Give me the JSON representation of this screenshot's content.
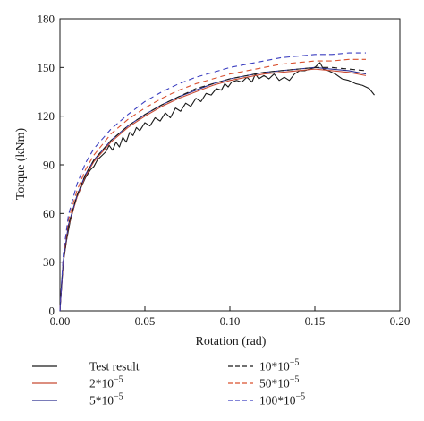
{
  "chart_data": {
    "type": "line",
    "xlabel": "Rotation (rad)",
    "ylabel": "Torque (kNm)",
    "xlim": [
      0,
      0.2
    ],
    "ylim": [
      0,
      180
    ],
    "xticks": [
      "0.00",
      "0.05",
      "0.10",
      "0.15",
      "0.20"
    ],
    "yticks": [
      "0",
      "30",
      "60",
      "90",
      "120",
      "150",
      "180"
    ],
    "grid": false,
    "legend_position": "bottom",
    "series": [
      {
        "name": "Test result",
        "color": "#1a1a1a",
        "dash": "solid",
        "points": [
          [
            0,
            0
          ],
          [
            0.001,
            18
          ],
          [
            0.002,
            30
          ],
          [
            0.004,
            44
          ],
          [
            0.006,
            55
          ],
          [
            0.008,
            63
          ],
          [
            0.01,
            70
          ],
          [
            0.012,
            75
          ],
          [
            0.015,
            82
          ],
          [
            0.018,
            87
          ],
          [
            0.02,
            89
          ],
          [
            0.022,
            93
          ],
          [
            0.025,
            96
          ],
          [
            0.027,
            98
          ],
          [
            0.029,
            102
          ],
          [
            0.031,
            99
          ],
          [
            0.033,
            104
          ],
          [
            0.035,
            101
          ],
          [
            0.037,
            107
          ],
          [
            0.039,
            104
          ],
          [
            0.041,
            110
          ],
          [
            0.043,
            108
          ],
          [
            0.045,
            113
          ],
          [
            0.047,
            111
          ],
          [
            0.05,
            116
          ],
          [
            0.053,
            114
          ],
          [
            0.056,
            119
          ],
          [
            0.059,
            117
          ],
          [
            0.062,
            122
          ],
          [
            0.065,
            119
          ],
          [
            0.068,
            125
          ],
          [
            0.071,
            123
          ],
          [
            0.074,
            128
          ],
          [
            0.077,
            126
          ],
          [
            0.08,
            131
          ],
          [
            0.083,
            129
          ],
          [
            0.086,
            134
          ],
          [
            0.089,
            133
          ],
          [
            0.092,
            137
          ],
          [
            0.095,
            136
          ],
          [
            0.097,
            140
          ],
          [
            0.099,
            138
          ],
          [
            0.101,
            141
          ],
          [
            0.104,
            142
          ],
          [
            0.107,
            141
          ],
          [
            0.11,
            144
          ],
          [
            0.113,
            141
          ],
          [
            0.115,
            146
          ],
          [
            0.117,
            143
          ],
          [
            0.12,
            145
          ],
          [
            0.123,
            143
          ],
          [
            0.126,
            146
          ],
          [
            0.129,
            142
          ],
          [
            0.132,
            144
          ],
          [
            0.135,
            142
          ],
          [
            0.138,
            146
          ],
          [
            0.141,
            148
          ],
          [
            0.144,
            148
          ],
          [
            0.147,
            149
          ],
          [
            0.15,
            150
          ],
          [
            0.153,
            153
          ],
          [
            0.155,
            149
          ],
          [
            0.158,
            148
          ],
          [
            0.162,
            146
          ],
          [
            0.166,
            143
          ],
          [
            0.17,
            142
          ],
          [
            0.174,
            140
          ],
          [
            0.178,
            139
          ],
          [
            0.182,
            137
          ],
          [
            0.185,
            133
          ]
        ]
      },
      {
        "name": "2*10^-5",
        "color": "#c84a33",
        "dash": "solid",
        "points": [
          [
            0,
            0
          ],
          [
            0.002,
            30
          ],
          [
            0.005,
            52
          ],
          [
            0.01,
            70
          ],
          [
            0.015,
            83
          ],
          [
            0.02,
            92
          ],
          [
            0.03,
            104
          ],
          [
            0.04,
            113
          ],
          [
            0.05,
            120
          ],
          [
            0.06,
            126
          ],
          [
            0.07,
            131
          ],
          [
            0.08,
            135
          ],
          [
            0.09,
            139
          ],
          [
            0.1,
            142
          ],
          [
            0.11,
            144
          ],
          [
            0.12,
            146
          ],
          [
            0.13,
            147
          ],
          [
            0.14,
            148
          ],
          [
            0.15,
            149
          ],
          [
            0.16,
            148
          ],
          [
            0.17,
            147
          ],
          [
            0.18,
            145
          ]
        ]
      },
      {
        "name": "5*10^-5",
        "color": "#2b2e8f",
        "dash": "solid",
        "points": [
          [
            0,
            0
          ],
          [
            0.002,
            31
          ],
          [
            0.005,
            53
          ],
          [
            0.01,
            71
          ],
          [
            0.015,
            84
          ],
          [
            0.02,
            93
          ],
          [
            0.03,
            105
          ],
          [
            0.04,
            114
          ],
          [
            0.05,
            121
          ],
          [
            0.06,
            127
          ],
          [
            0.07,
            132
          ],
          [
            0.08,
            136
          ],
          [
            0.09,
            140
          ],
          [
            0.1,
            143
          ],
          [
            0.11,
            145
          ],
          [
            0.12,
            147
          ],
          [
            0.13,
            148
          ],
          [
            0.14,
            149
          ],
          [
            0.15,
            150
          ],
          [
            0.16,
            149
          ],
          [
            0.17,
            148
          ],
          [
            0.18,
            146
          ]
        ]
      },
      {
        "name": "10*10^-5",
        "color": "#1a1a1a",
        "dash": "dashed",
        "points": [
          [
            0,
            0
          ],
          [
            0.002,
            31
          ],
          [
            0.005,
            53
          ],
          [
            0.01,
            71
          ],
          [
            0.015,
            84
          ],
          [
            0.02,
            93
          ],
          [
            0.03,
            105
          ],
          [
            0.04,
            114
          ],
          [
            0.05,
            121
          ],
          [
            0.06,
            127
          ],
          [
            0.07,
            132
          ],
          [
            0.08,
            137
          ],
          [
            0.09,
            140
          ],
          [
            0.1,
            143
          ],
          [
            0.11,
            145
          ],
          [
            0.12,
            147
          ],
          [
            0.13,
            148
          ],
          [
            0.14,
            149
          ],
          [
            0.15,
            150
          ],
          [
            0.16,
            150
          ],
          [
            0.17,
            149
          ],
          [
            0.18,
            148
          ]
        ]
      },
      {
        "name": "50*10^-5",
        "color": "#d9502f",
        "dash": "dashed",
        "points": [
          [
            0,
            0
          ],
          [
            0.002,
            33
          ],
          [
            0.005,
            56
          ],
          [
            0.01,
            74
          ],
          [
            0.015,
            87
          ],
          [
            0.02,
            96
          ],
          [
            0.03,
            109
          ],
          [
            0.04,
            118
          ],
          [
            0.05,
            125
          ],
          [
            0.06,
            131
          ],
          [
            0.07,
            136
          ],
          [
            0.08,
            140
          ],
          [
            0.09,
            143
          ],
          [
            0.1,
            146
          ],
          [
            0.11,
            148
          ],
          [
            0.12,
            150
          ],
          [
            0.13,
            152
          ],
          [
            0.14,
            153
          ],
          [
            0.15,
            154
          ],
          [
            0.16,
            154
          ],
          [
            0.17,
            155
          ],
          [
            0.18,
            155
          ]
        ]
      },
      {
        "name": "100*10^-5",
        "color": "#3b3ec0",
        "dash": "dashed",
        "points": [
          [
            0,
            0
          ],
          [
            0.002,
            35
          ],
          [
            0.005,
            59
          ],
          [
            0.01,
            78
          ],
          [
            0.015,
            91
          ],
          [
            0.02,
            100
          ],
          [
            0.03,
            112
          ],
          [
            0.04,
            121
          ],
          [
            0.05,
            129
          ],
          [
            0.06,
            135
          ],
          [
            0.07,
            140
          ],
          [
            0.08,
            144
          ],
          [
            0.09,
            147
          ],
          [
            0.1,
            150
          ],
          [
            0.11,
            152
          ],
          [
            0.12,
            154
          ],
          [
            0.13,
            156
          ],
          [
            0.14,
            157
          ],
          [
            0.15,
            158
          ],
          [
            0.16,
            158
          ],
          [
            0.17,
            159
          ],
          [
            0.18,
            159
          ]
        ]
      }
    ]
  },
  "legend": [
    {
      "base": "Test result",
      "exp": ""
    },
    {
      "base": "10*10",
      "exp": "−5"
    },
    {
      "base": "2*10",
      "exp": "−5"
    },
    {
      "base": "50*10",
      "exp": "−5"
    },
    {
      "base": "5*10",
      "exp": "−5"
    },
    {
      "base": "100*10",
      "exp": "−5"
    }
  ]
}
